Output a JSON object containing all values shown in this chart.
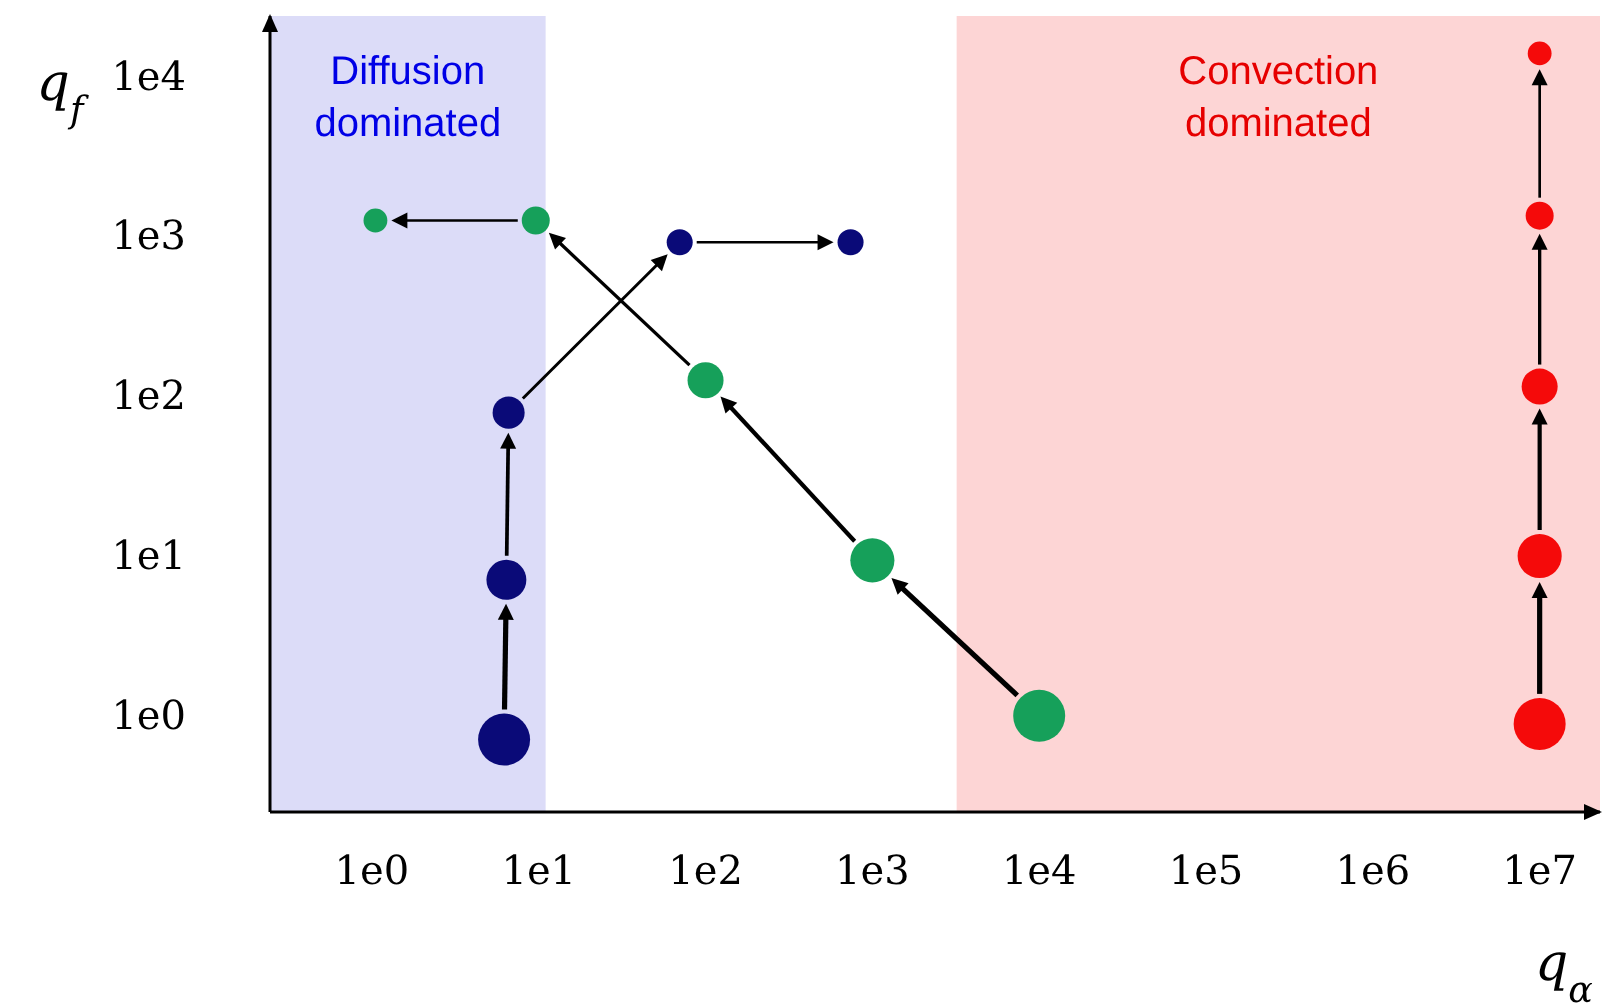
{
  "chart_data": {
    "type": "bubble",
    "xlabel": "q$_{α}$",
    "ylabel": "q$_{f}$",
    "log": "xy",
    "xlim": [
      0.245,
      23000000
    ],
    "ylim": [
      0.25,
      24000
    ],
    "xticks": [
      {
        "value": 1,
        "label": "1e0"
      },
      {
        "value": 10,
        "label": "1e1"
      },
      {
        "value": 100,
        "label": "1e2"
      },
      {
        "value": 1000,
        "label": "1e3"
      },
      {
        "value": 10000,
        "label": "1e4"
      },
      {
        "value": 100000,
        "label": "1e5"
      },
      {
        "value": 1000000,
        "label": "1e6"
      },
      {
        "value": 10000000,
        "label": "1e7"
      }
    ],
    "yticks": [
      {
        "value": 1,
        "label": "1e0"
      },
      {
        "value": 10,
        "label": "1e1"
      },
      {
        "value": 100,
        "label": "1e2"
      },
      {
        "value": 1000,
        "label": "1e3"
      },
      {
        "value": 10000,
        "label": "1e4"
      }
    ],
    "bands": [
      {
        "axis": "x",
        "from": 0.245,
        "to": 11,
        "label": "Diffusion dominated",
        "color": "#dcdcf8"
      },
      {
        "axis": "x",
        "from": 3200,
        "to": 23000000,
        "label": "Convection dominated",
        "color": "#fdd5d5"
      }
    ],
    "series": [
      {
        "color": "#0a0a78",
        "x": [
          6.2,
          6.4,
          6.6,
          70,
          740
        ],
        "values": [
          0.71,
          7.1,
          79,
          920,
          920
        ],
        "sizes": [
          1,
          0.59,
          0.38,
          0.25,
          0.25
        ]
      },
      {
        "color": "#16a05a",
        "x": [
          10000,
          1000,
          100,
          9.6,
          1.05
        ],
        "values": [
          1,
          9.4,
          126,
          1260,
          1260
        ],
        "sizes": [
          1,
          0.72,
          0.48,
          0.29,
          0.21
        ]
      },
      {
        "color": "#f50a0a",
        "x": [
          10000000,
          10000000,
          10000000,
          10000000,
          10000000
        ],
        "values": [
          0.89,
          10,
          115,
          1350,
          14000
        ],
        "sizes": [
          1,
          0.72,
          0.48,
          0.29,
          0.21
        ]
      }
    ]
  }
}
